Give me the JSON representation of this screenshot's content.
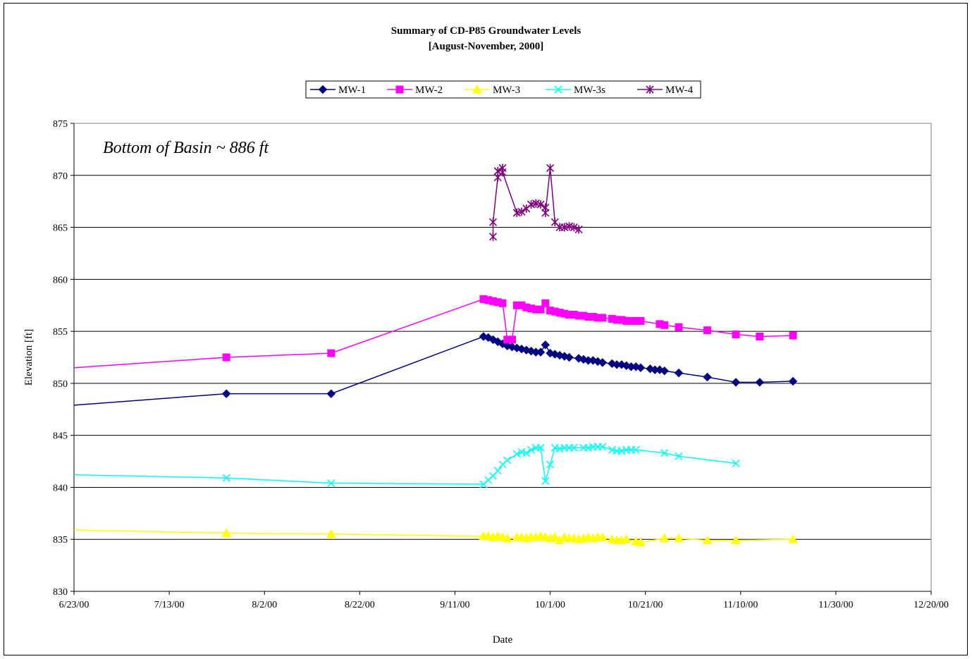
{
  "chart_data": {
    "type": "line",
    "title": "Summary of CD-P85 Groundwater Levels",
    "subtitle": "[August-November, 2000]",
    "xlabel": "Date",
    "ylabel": "Elevation [ft]",
    "annotation": "Bottom of Basin ~ 886 ft",
    "ylim": [
      830,
      875
    ],
    "yticks": [
      830,
      835,
      840,
      845,
      850,
      855,
      860,
      865,
      870,
      875
    ],
    "xlim": [
      "2000-06-23",
      "2000-12-20"
    ],
    "xticks": [
      "2000-06-23",
      "2000-07-13",
      "2000-08-02",
      "2000-08-22",
      "2000-09-11",
      "2000-10-01",
      "2000-10-21",
      "2000-11-10",
      "2000-11-30",
      "2000-12-20"
    ],
    "xtick_labels": [
      "6/23/00",
      "7/13/00",
      "8/2/00",
      "8/22/00",
      "9/11/00",
      "10/1/00",
      "10/21/00",
      "11/10/00",
      "11/30/00",
      "12/20/00"
    ],
    "grid": "horizontal",
    "legend": "top",
    "series": [
      {
        "name": "MW-1",
        "color": "#000080",
        "marker": "diamond",
        "points": [
          [
            "2000-06-23",
            847.9
          ],
          [
            "2000-07-25",
            849.0
          ],
          [
            "2000-08-16",
            849.0
          ],
          [
            "2000-09-17",
            854.5
          ],
          [
            "2000-09-18",
            854.4
          ],
          [
            "2000-09-19",
            854.2
          ],
          [
            "2000-09-20",
            854.0
          ],
          [
            "2000-09-21",
            853.8
          ],
          [
            "2000-09-22",
            853.6
          ],
          [
            "2000-09-23",
            853.5
          ],
          [
            "2000-09-24",
            853.4
          ],
          [
            "2000-09-25",
            853.3
          ],
          [
            "2000-09-26",
            853.2
          ],
          [
            "2000-09-27",
            853.1
          ],
          [
            "2000-09-28",
            853.0
          ],
          [
            "2000-09-29",
            853.0
          ],
          [
            "2000-09-30",
            853.7
          ],
          [
            "2000-10-01",
            852.9
          ],
          [
            "2000-10-02",
            852.8
          ],
          [
            "2000-10-03",
            852.7
          ],
          [
            "2000-10-04",
            852.6
          ],
          [
            "2000-10-05",
            852.5
          ],
          [
            "2000-10-07",
            852.4
          ],
          [
            "2000-10-08",
            852.3
          ],
          [
            "2000-10-09",
            852.2
          ],
          [
            "2000-10-10",
            852.2
          ],
          [
            "2000-10-11",
            852.1
          ],
          [
            "2000-10-12",
            852.0
          ],
          [
            "2000-10-14",
            851.9
          ],
          [
            "2000-10-15",
            851.8
          ],
          [
            "2000-10-16",
            851.8
          ],
          [
            "2000-10-17",
            851.7
          ],
          [
            "2000-10-18",
            851.6
          ],
          [
            "2000-10-19",
            851.6
          ],
          [
            "2000-10-20",
            851.5
          ],
          [
            "2000-10-22",
            851.4
          ],
          [
            "2000-10-23",
            851.3
          ],
          [
            "2000-10-24",
            851.3
          ],
          [
            "2000-10-25",
            851.2
          ],
          [
            "2000-10-28",
            851.0
          ],
          [
            "2000-11-03",
            850.6
          ],
          [
            "2000-11-09",
            850.1
          ],
          [
            "2000-11-14",
            850.1
          ],
          [
            "2000-11-21",
            850.2
          ]
        ]
      },
      {
        "name": "MW-2",
        "color": "#FF00FF",
        "marker": "square",
        "points": [
          [
            "2000-06-23",
            851.5
          ],
          [
            "2000-07-25",
            852.5
          ],
          [
            "2000-08-16",
            852.9
          ],
          [
            "2000-09-17",
            858.1
          ],
          [
            "2000-09-18",
            858.0
          ],
          [
            "2000-09-19",
            857.9
          ],
          [
            "2000-09-20",
            857.8
          ],
          [
            "2000-09-21",
            857.7
          ],
          [
            "2000-09-22",
            854.2
          ],
          [
            "2000-09-23",
            854.2
          ],
          [
            "2000-09-24",
            857.5
          ],
          [
            "2000-09-25",
            857.5
          ],
          [
            "2000-09-26",
            857.3
          ],
          [
            "2000-09-27",
            857.2
          ],
          [
            "2000-09-28",
            857.1
          ],
          [
            "2000-09-29",
            857.1
          ],
          [
            "2000-09-30",
            857.7
          ],
          [
            "2000-10-01",
            857.0
          ],
          [
            "2000-10-02",
            856.9
          ],
          [
            "2000-10-03",
            856.8
          ],
          [
            "2000-10-04",
            856.7
          ],
          [
            "2000-10-05",
            856.6
          ],
          [
            "2000-10-06",
            856.6
          ],
          [
            "2000-10-07",
            856.5
          ],
          [
            "2000-10-08",
            856.5
          ],
          [
            "2000-10-09",
            856.4
          ],
          [
            "2000-10-10",
            856.4
          ],
          [
            "2000-10-11",
            856.3
          ],
          [
            "2000-10-12",
            856.3
          ],
          [
            "2000-10-14",
            856.2
          ],
          [
            "2000-10-15",
            856.1
          ],
          [
            "2000-10-16",
            856.1
          ],
          [
            "2000-10-17",
            856.0
          ],
          [
            "2000-10-18",
            856.0
          ],
          [
            "2000-10-19",
            856.0
          ],
          [
            "2000-10-20",
            856.0
          ],
          [
            "2000-10-24",
            855.7
          ],
          [
            "2000-10-25",
            855.6
          ],
          [
            "2000-10-28",
            855.4
          ],
          [
            "2000-11-03",
            855.1
          ],
          [
            "2000-11-09",
            854.7
          ],
          [
            "2000-11-14",
            854.5
          ],
          [
            "2000-11-21",
            854.6
          ]
        ]
      },
      {
        "name": "MW-3",
        "color": "#FFFF00",
        "marker": "triangle",
        "points": [
          [
            "2000-06-23",
            835.9
          ],
          [
            "2000-07-25",
            835.6
          ],
          [
            "2000-08-16",
            835.5
          ],
          [
            "2000-09-17",
            835.3
          ],
          [
            "2000-09-18",
            835.3
          ],
          [
            "2000-09-19",
            835.2
          ],
          [
            "2000-09-20",
            835.3
          ],
          [
            "2000-09-21",
            835.2
          ],
          [
            "2000-09-22",
            835.1
          ],
          [
            "2000-09-24",
            835.2
          ],
          [
            "2000-09-25",
            835.2
          ],
          [
            "2000-09-26",
            835.1
          ],
          [
            "2000-09-27",
            835.2
          ],
          [
            "2000-09-28",
            835.2
          ],
          [
            "2000-09-29",
            835.3
          ],
          [
            "2000-09-30",
            835.2
          ],
          [
            "2000-10-01",
            835.1
          ],
          [
            "2000-10-02",
            835.2
          ],
          [
            "2000-10-03",
            834.9
          ],
          [
            "2000-10-04",
            835.2
          ],
          [
            "2000-10-05",
            835.1
          ],
          [
            "2000-10-06",
            835.1
          ],
          [
            "2000-10-07",
            835.0
          ],
          [
            "2000-10-08",
            835.1
          ],
          [
            "2000-10-09",
            835.2
          ],
          [
            "2000-10-10",
            835.1
          ],
          [
            "2000-10-11",
            835.2
          ],
          [
            "2000-10-12",
            835.2
          ],
          [
            "2000-10-14",
            835.0
          ],
          [
            "2000-10-15",
            834.9
          ],
          [
            "2000-10-16",
            834.9
          ],
          [
            "2000-10-17",
            835.0
          ],
          [
            "2000-10-19",
            834.8
          ],
          [
            "2000-10-20",
            834.7
          ],
          [
            "2000-10-25",
            835.1
          ],
          [
            "2000-10-28",
            835.1
          ],
          [
            "2000-11-03",
            834.9
          ],
          [
            "2000-11-09",
            834.9
          ],
          [
            "2000-11-21",
            835.0
          ]
        ]
      },
      {
        "name": "MW-3s",
        "color": "#00FFFF",
        "marker": "x",
        "points": [
          [
            "2000-06-23",
            841.2
          ],
          [
            "2000-07-25",
            840.9
          ],
          [
            "2000-08-16",
            840.4
          ],
          [
            "2000-09-17",
            840.3
          ],
          [
            "2000-09-18",
            840.7
          ],
          [
            "2000-09-19",
            841.1
          ],
          [
            "2000-09-20",
            841.6
          ],
          [
            "2000-09-21",
            842.2
          ],
          [
            "2000-09-22",
            842.6
          ],
          [
            "2000-09-24",
            843.2
          ],
          [
            "2000-09-25",
            843.4
          ],
          [
            "2000-09-26",
            843.3
          ],
          [
            "2000-09-27",
            843.6
          ],
          [
            "2000-09-28",
            843.8
          ],
          [
            "2000-09-29",
            843.8
          ],
          [
            "2000-09-30",
            840.6
          ],
          [
            "2000-10-01",
            842.2
          ],
          [
            "2000-10-02",
            843.8
          ],
          [
            "2000-10-03",
            843.7
          ],
          [
            "2000-10-04",
            843.8
          ],
          [
            "2000-10-05",
            843.8
          ],
          [
            "2000-10-06",
            843.8
          ],
          [
            "2000-10-08",
            843.8
          ],
          [
            "2000-10-09",
            843.8
          ],
          [
            "2000-10-10",
            843.9
          ],
          [
            "2000-10-11",
            843.9
          ],
          [
            "2000-10-12",
            843.9
          ],
          [
            "2000-10-14",
            843.6
          ],
          [
            "2000-10-15",
            843.5
          ],
          [
            "2000-10-16",
            843.5
          ],
          [
            "2000-10-17",
            843.6
          ],
          [
            "2000-10-18",
            843.6
          ],
          [
            "2000-10-19",
            843.6
          ],
          [
            "2000-10-25",
            843.3
          ],
          [
            "2000-10-28",
            843.0
          ],
          [
            "2000-11-09",
            842.3
          ]
        ]
      },
      {
        "name": "MW-4",
        "color": "#800080",
        "marker": "star",
        "points": [
          [
            "2000-09-19",
            864.1
          ],
          [
            "2000-09-19",
            865.5
          ],
          [
            "2000-09-20",
            869.8
          ],
          [
            "2000-09-20",
            870.4
          ],
          [
            "2000-09-21",
            870.7
          ],
          [
            "2000-09-21",
            870.3
          ],
          [
            "2000-09-24",
            866.4
          ],
          [
            "2000-09-25",
            866.5
          ],
          [
            "2000-09-26",
            866.8
          ],
          [
            "2000-09-27",
            867.2
          ],
          [
            "2000-09-28",
            867.3
          ],
          [
            "2000-09-29",
            867.2
          ],
          [
            "2000-09-30",
            866.9
          ],
          [
            "2000-09-30",
            866.4
          ],
          [
            "2000-10-01",
            870.7
          ],
          [
            "2000-10-02",
            865.5
          ],
          [
            "2000-10-03",
            865.0
          ],
          [
            "2000-10-04",
            865.0
          ],
          [
            "2000-10-05",
            865.1
          ],
          [
            "2000-10-06",
            865.0
          ],
          [
            "2000-10-07",
            864.8
          ]
        ]
      }
    ]
  }
}
